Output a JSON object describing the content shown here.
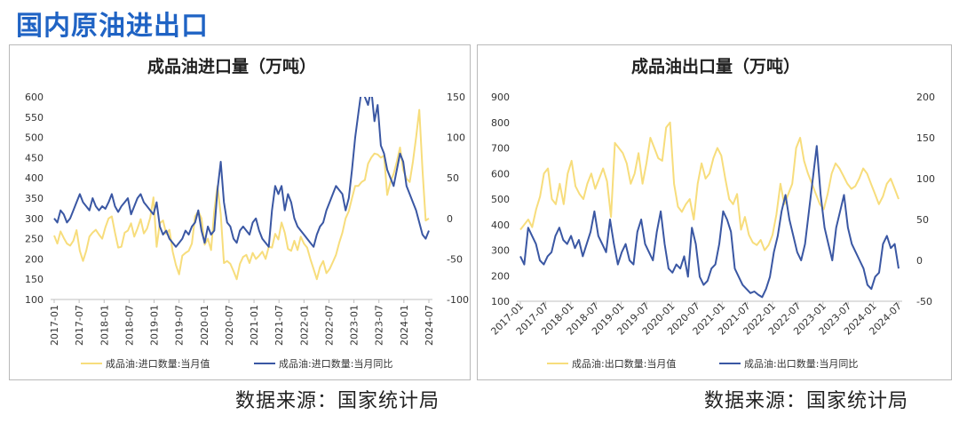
{
  "page": {
    "title": "国内原油进出口",
    "source_left": "数据来源：国家统计局",
    "source_right": "数据来源：国家统计局"
  },
  "colors": {
    "monthly": "#f7dd7c",
    "yoy": "#3a57a3",
    "title": "#1f63c4"
  },
  "chart_data": [
    {
      "type": "line",
      "title": "成品油进口量（万吨）",
      "x_labels": [
        "2017-01",
        "2017-07",
        "2018-01",
        "2018-07",
        "2019-01",
        "2019-07",
        "2020-01",
        "2020-07",
        "2021-01",
        "2021-07",
        "2022-01",
        "2022-07",
        "2023-01",
        "2023-07",
        "2024-01",
        "2024-07"
      ],
      "ylim_left": [
        100,
        600
      ],
      "yticks_left": [
        "600",
        "550",
        "500",
        "450",
        "400",
        "350",
        "300",
        "250",
        "200",
        "150",
        "100"
      ],
      "ylim_right": [
        -100,
        150
      ],
      "yticks_right": [
        "150",
        "100",
        "50",
        "0",
        "-50",
        "-100"
      ],
      "series": [
        {
          "name": "成品油:进口数量:当月值",
          "axis": "left",
          "values": [
            258,
            238,
            268,
            252,
            238,
            233,
            245,
            271,
            220,
            195,
            220,
            255,
            265,
            272,
            260,
            250,
            278,
            300,
            305,
            265,
            228,
            230,
            265,
            270,
            288,
            255,
            275,
            298,
            263,
            275,
            302,
            352,
            230,
            288,
            295,
            262,
            272,
            218,
            185,
            162,
            208,
            215,
            220,
            238,
            305,
            318,
            300,
            235,
            250,
            222,
            318,
            380,
            310,
            190,
            195,
            188,
            170,
            150,
            188,
            205,
            210,
            190,
            215,
            200,
            208,
            218,
            200,
            230,
            228,
            262,
            248,
            290,
            265,
            225,
            220,
            245,
            222,
            255,
            238,
            228,
            200,
            175,
            150,
            180,
            195,
            165,
            175,
            192,
            210,
            240,
            265,
            300,
            318,
            350,
            380,
            380,
            390,
            395,
            435,
            450,
            460,
            458,
            450,
            455,
            358,
            390,
            410,
            440,
            475,
            420,
            398,
            390,
            440,
            500,
            568,
            420,
            295,
            300
          ]
        },
        {
          "name": "成品油:进口数量:当月同比",
          "axis": "right",
          "values": [
            0,
            -5,
            10,
            5,
            -5,
            0,
            10,
            20,
            30,
            20,
            15,
            10,
            25,
            15,
            10,
            15,
            12,
            20,
            30,
            15,
            8,
            15,
            20,
            25,
            5,
            15,
            25,
            30,
            20,
            15,
            10,
            5,
            20,
            -10,
            -20,
            -15,
            -25,
            -30,
            -35,
            -30,
            -25,
            -15,
            -20,
            -10,
            -5,
            10,
            -15,
            -30,
            -10,
            -20,
            -15,
            35,
            70,
            20,
            -5,
            -10,
            -25,
            -30,
            -15,
            -10,
            -15,
            -20,
            -5,
            0,
            -15,
            -25,
            -30,
            -35,
            10,
            40,
            30,
            40,
            10,
            30,
            20,
            0,
            -10,
            -15,
            -20,
            -25,
            -30,
            -35,
            -20,
            -10,
            -5,
            10,
            20,
            30,
            40,
            35,
            30,
            10,
            25,
            60,
            100,
            130,
            160,
            150,
            140,
            160,
            120,
            140,
            90,
            80,
            60,
            50,
            40,
            60,
            80,
            70,
            40,
            30,
            20,
            10,
            -5,
            -20,
            -25,
            -15
          ]
        }
      ],
      "legend": [
        "成品油:进口数量:当月值",
        "成品油:进口数量:当月同比"
      ]
    },
    {
      "type": "line",
      "title": "成品油出口量（万吨）",
      "x_labels": [
        "2017-01",
        "2017-07",
        "2018-01",
        "2018-07",
        "2019-01",
        "2019-07",
        "2020-01",
        "2020-07",
        "2021-01",
        "2021-07",
        "2022-01",
        "2022-07",
        "2023-01",
        "2023-07",
        "2024-01",
        "2024-07"
      ],
      "ylim_left": [
        100,
        900
      ],
      "yticks_left": [
        "900",
        "800",
        "700",
        "600",
        "500",
        "400",
        "300",
        "200",
        "100"
      ],
      "ylim_right": [
        -50,
        200
      ],
      "yticks_right": [
        "200",
        "150",
        "100",
        "50",
        "0",
        "-50"
      ],
      "series": [
        {
          "name": "成品油:出口数量:当月值",
          "axis": "left",
          "values": [
            380,
            400,
            420,
            390,
            460,
            510,
            600,
            620,
            500,
            480,
            560,
            480,
            600,
            650,
            550,
            520,
            500,
            560,
            600,
            540,
            580,
            620,
            570,
            430,
            720,
            700,
            680,
            640,
            560,
            600,
            680,
            560,
            640,
            740,
            700,
            660,
            650,
            780,
            800,
            560,
            470,
            450,
            480,
            500,
            420,
            560,
            640,
            580,
            600,
            660,
            700,
            670,
            580,
            500,
            480,
            520,
            380,
            430,
            360,
            330,
            320,
            340,
            300,
            320,
            360,
            440,
            560,
            480,
            520,
            560,
            700,
            740,
            650,
            600,
            560,
            520,
            480,
            460,
            520,
            600,
            640,
            620,
            590,
            560,
            540,
            550,
            580,
            620,
            600,
            560,
            520,
            480,
            510,
            560,
            580,
            540,
            500
          ]
        },
        {
          "name": "成品油:出口数量:当月同比",
          "axis": "right",
          "values": [
            5,
            -5,
            40,
            30,
            20,
            0,
            -5,
            5,
            10,
            30,
            40,
            25,
            20,
            30,
            15,
            25,
            5,
            20,
            35,
            60,
            30,
            20,
            10,
            50,
            20,
            -5,
            10,
            20,
            0,
            -5,
            35,
            50,
            20,
            10,
            0,
            35,
            60,
            20,
            -10,
            -15,
            -5,
            -10,
            5,
            -20,
            40,
            20,
            -20,
            -30,
            -25,
            -10,
            -5,
            20,
            60,
            50,
            35,
            -10,
            -20,
            -30,
            -35,
            -40,
            -38,
            -42,
            -45,
            -35,
            -20,
            10,
            30,
            60,
            80,
            50,
            30,
            10,
            0,
            20,
            60,
            100,
            140,
            80,
            40,
            20,
            0,
            40,
            60,
            80,
            40,
            20,
            10,
            0,
            -10,
            -30,
            -35,
            -20,
            -15,
            20,
            30,
            15,
            20,
            -10
          ]
        }
      ],
      "legend": [
        "成品油:出口数量:当月值",
        "成品油:出口数量:当月同比"
      ]
    }
  ]
}
